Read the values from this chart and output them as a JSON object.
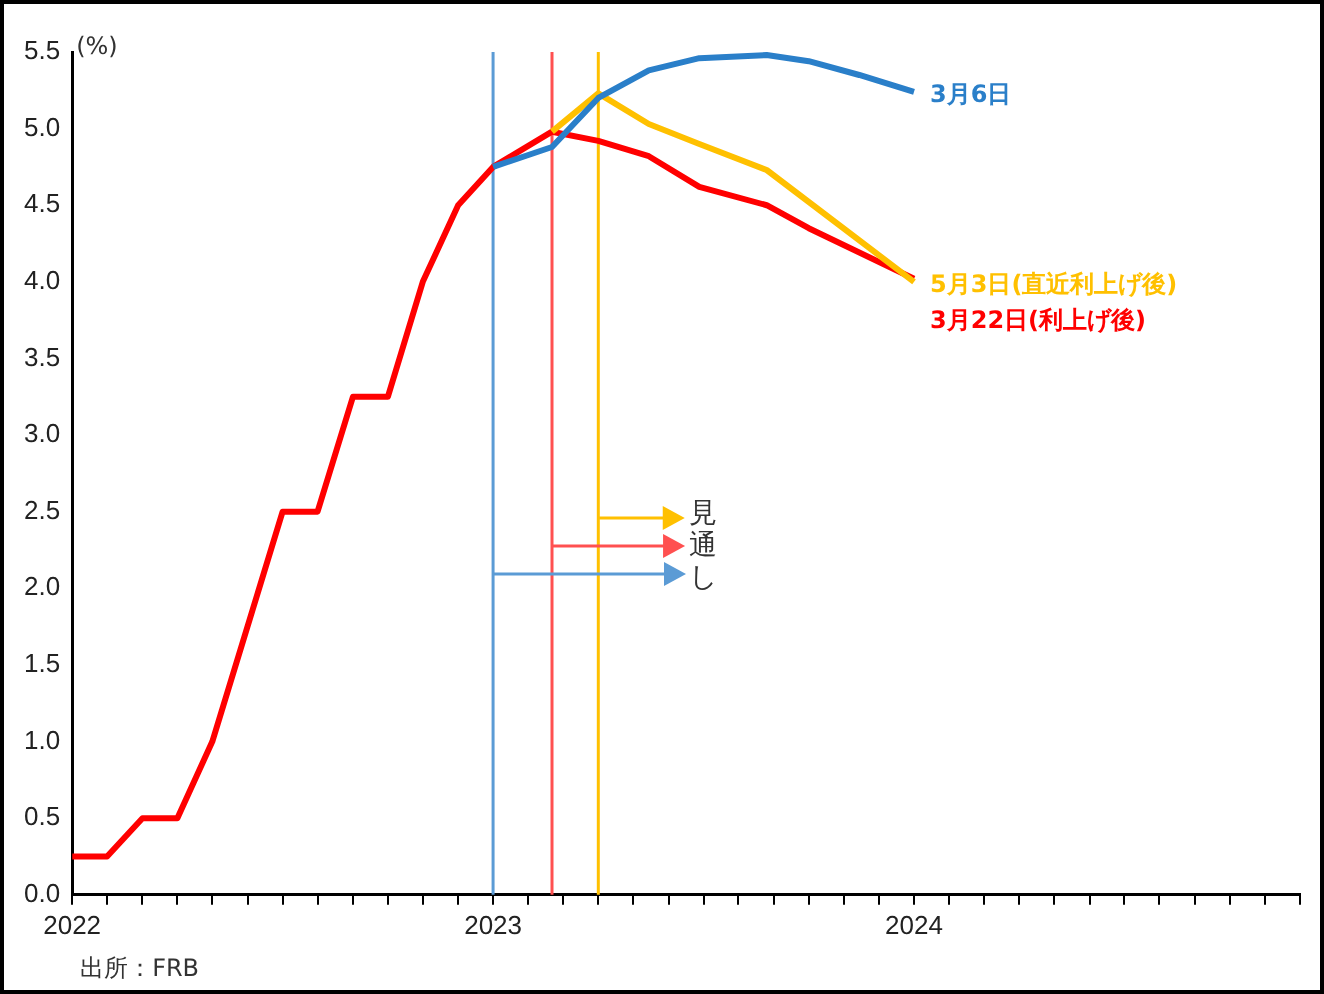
{
  "chart_data": {
    "type": "line",
    "ylabel": "(%)",
    "marker": "none",
    "xlim": [
      2022,
      2024.917
    ],
    "xticks": [
      {
        "value": 2022,
        "label": "2022"
      },
      {
        "value": 2022.083,
        "label": null
      },
      {
        "value": 2022.167,
        "label": null
      },
      {
        "value": 2022.25,
        "label": null
      },
      {
        "value": 2022.333,
        "label": null
      },
      {
        "value": 2022.417,
        "label": null
      },
      {
        "value": 2022.5,
        "label": null
      },
      {
        "value": 2022.583,
        "label": null
      },
      {
        "value": 2022.667,
        "label": null
      },
      {
        "value": 2022.75,
        "label": null
      },
      {
        "value": 2022.833,
        "label": null
      },
      {
        "value": 2022.917,
        "label": null
      },
      {
        "value": 2023,
        "label": "2023"
      },
      {
        "value": 2023.083,
        "label": null
      },
      {
        "value": 2023.167,
        "label": null
      },
      {
        "value": 2023.25,
        "label": null
      },
      {
        "value": 2023.333,
        "label": null
      },
      {
        "value": 2023.417,
        "label": null
      },
      {
        "value": 2023.5,
        "label": null
      },
      {
        "value": 2023.583,
        "label": null
      },
      {
        "value": 2023.667,
        "label": null
      },
      {
        "value": 2023.75,
        "label": null
      },
      {
        "value": 2023.833,
        "label": null
      },
      {
        "value": 2023.917,
        "label": null
      },
      {
        "value": 2024,
        "label": "2024"
      },
      {
        "value": 2024.083,
        "label": null
      },
      {
        "value": 2024.167,
        "label": null
      },
      {
        "value": 2024.25,
        "label": null
      },
      {
        "value": 2024.333,
        "label": null
      },
      {
        "value": 2024.417,
        "label": null
      },
      {
        "value": 2024.5,
        "label": null
      },
      {
        "value": 2024.583,
        "label": null
      },
      {
        "value": 2024.667,
        "label": null
      },
      {
        "value": 2024.75,
        "label": null
      },
      {
        "value": 2024.833,
        "label": null
      },
      {
        "value": 2024.917,
        "label": null
      }
    ],
    "ylim": [
      0,
      5.5
    ],
    "yticks": [
      {
        "value": 0,
        "label": "0.0"
      },
      0.5,
      {
        "value": 1,
        "label": "1.0"
      },
      1.5,
      {
        "value": 2,
        "label": "2.0"
      },
      2.5,
      {
        "value": 3,
        "label": "3.0"
      },
      3.5,
      {
        "value": 4,
        "label": "4.0"
      },
      4.5,
      {
        "value": 5,
        "label": "5.0"
      },
      5.5
    ],
    "series": [
      {
        "name": "3月6日",
        "color": "#2a7fc9",
        "x": [
          2023,
          2023.14,
          2023.25,
          2023.37,
          2023.49,
          2023.65,
          2023.75,
          2023.87,
          2024
        ],
        "values": [
          4.75,
          4.88,
          5.2,
          5.38,
          5.46,
          5.48,
          5.44,
          5.35,
          5.24
        ]
      },
      {
        "name": "5月3日(直近利上げ後)",
        "color": "#ffc000",
        "x": [
          2023.14,
          2023.25,
          2023.37,
          2023.49,
          2023.65,
          2024
        ],
        "values": [
          4.98,
          5.23,
          5.03,
          4.9,
          4.73,
          4.0
        ]
      },
      {
        "name": "3月22日(利上げ後)",
        "color": "#ff0000",
        "x": [
          2022,
          2022.083,
          2022.167,
          2022.25,
          2022.333,
          2022.5,
          2022.583,
          2022.667,
          2022.75,
          2022.833,
          2022.917,
          2023,
          2023.14,
          2023.25,
          2023.37,
          2023.49,
          2023.65,
          2023.75,
          2024
        ],
        "values": [
          0.25,
          0.25,
          0.5,
          0.5,
          1.0,
          2.5,
          2.5,
          3.25,
          3.25,
          4.0,
          4.5,
          4.75,
          4.98,
          4.92,
          4.82,
          4.62,
          4.5,
          4.35,
          4.02
        ]
      }
    ],
    "ref_lines": [
      {
        "axis": "x",
        "value": 2023,
        "color": "#5b9bd5"
      },
      {
        "axis": "x",
        "value": 2023.14,
        "color": "#ff5050"
      },
      {
        "axis": "x",
        "value": 2023.25,
        "color": "#ffc000"
      }
    ],
    "annotations": [
      {
        "text": "見通し",
        "x": 2023,
        "y": 2.1
      },
      "出所：FRB"
    ]
  }
}
